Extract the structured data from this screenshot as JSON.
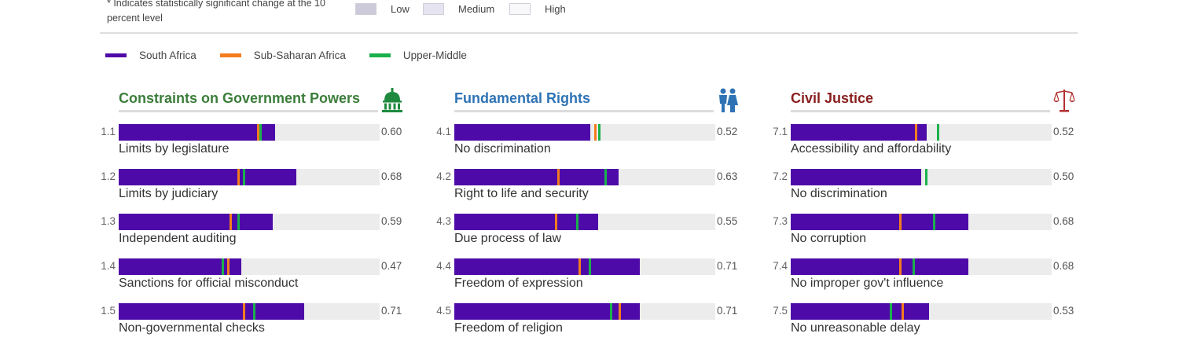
{
  "header": {
    "note": "* Indicates statistically significant change at the 10 percent level",
    "key": [
      "Low",
      "Medium",
      "High"
    ],
    "key_colors": [
      "#cdcadb",
      "#e6e4f0",
      "#f8f8fa"
    ]
  },
  "legend": [
    {
      "label": "South Africa",
      "color": "#4e0aa8"
    },
    {
      "label": "Sub-Saharan Africa",
      "color": "#f47c1f"
    },
    {
      "label": "Upper-Middle",
      "color": "#1ab14b"
    }
  ],
  "chart_data": [
    {
      "type": "bar",
      "title": "Constraints on Government Powers",
      "title_color": "#3b7d3a",
      "icon": "capitol-dome-icon",
      "xlim": [
        0,
        1
      ],
      "series": [
        "South Africa",
        "Sub-Saharan Africa",
        "Upper-Middle"
      ],
      "items": [
        {
          "num": "1.1",
          "label": "Limits by legislature",
          "value_text": "0.60",
          "value": 0.6,
          "ssa": 0.535,
          "um": 0.545
        },
        {
          "num": "1.2",
          "label": "Limits by judiciary",
          "value_text": "0.68",
          "value": 0.68,
          "ssa": 0.46,
          "um": 0.48
        },
        {
          "num": "1.3",
          "label": "Independent auditing",
          "value_text": "0.59",
          "value": 0.59,
          "ssa": 0.43,
          "um": 0.46
        },
        {
          "num": "1.4",
          "label": "Sanctions for official misconduct",
          "value_text": "0.47",
          "value": 0.47,
          "ssa": 0.42,
          "um": 0.4
        },
        {
          "num": "1.5",
          "label": "Non-governmental checks",
          "value_text": "0.71",
          "value": 0.71,
          "ssa": 0.48,
          "um": 0.52
        }
      ]
    },
    {
      "type": "bar",
      "title": "Fundamental Rights",
      "title_color": "#2f73b5",
      "icon": "people-icon",
      "xlim": [
        0,
        1
      ],
      "series": [
        "South Africa",
        "Sub-Saharan Africa",
        "Upper-Middle"
      ],
      "items": [
        {
          "num": "4.1",
          "label": "No discrimination",
          "value_text": "0.52",
          "value": 0.52,
          "ssa": 0.54,
          "um": 0.555
        },
        {
          "num": "4.2",
          "label": "Right to life and security",
          "value_text": "0.63",
          "value": 0.63,
          "ssa": 0.4,
          "um": 0.58
        },
        {
          "num": "4.3",
          "label": "Due process of law",
          "value_text": "0.55",
          "value": 0.55,
          "ssa": 0.39,
          "um": 0.47
        },
        {
          "num": "4.4",
          "label": "Freedom of expression",
          "value_text": "0.71",
          "value": 0.71,
          "ssa": 0.48,
          "um": 0.52
        },
        {
          "num": "4.5",
          "label": "Freedom of religion",
          "value_text": "0.71",
          "value": 0.71,
          "ssa": 0.635,
          "um": 0.6
        }
      ]
    },
    {
      "type": "bar",
      "title": "Civil Justice",
      "title_color": "#8a1f1f",
      "icon": "scales-icon",
      "xlim": [
        0,
        1
      ],
      "series": [
        "South Africa",
        "Sub-Saharan Africa",
        "Upper-Middle"
      ],
      "items": [
        {
          "num": "7.1",
          "label": "Accessibility and affordability",
          "value_text": "0.52",
          "value": 0.52,
          "ssa": 0.48,
          "um": 0.565
        },
        {
          "num": "7.2",
          "label": "No discrimination",
          "value_text": "0.50",
          "value": 0.5,
          "ssa": null,
          "um": 0.52
        },
        {
          "num": "7.3",
          "label": "No corruption",
          "value_text": "0.68",
          "value": 0.68,
          "ssa": 0.42,
          "um": 0.55
        },
        {
          "num": "7.4",
          "label": "No improper gov't influence",
          "value_text": "0.68",
          "value": 0.68,
          "ssa": 0.42,
          "um": 0.47
        },
        {
          "num": "7.5",
          "label": "No unreasonable delay",
          "value_text": "0.53",
          "value": 0.53,
          "ssa": 0.43,
          "um": 0.385
        }
      ]
    }
  ]
}
